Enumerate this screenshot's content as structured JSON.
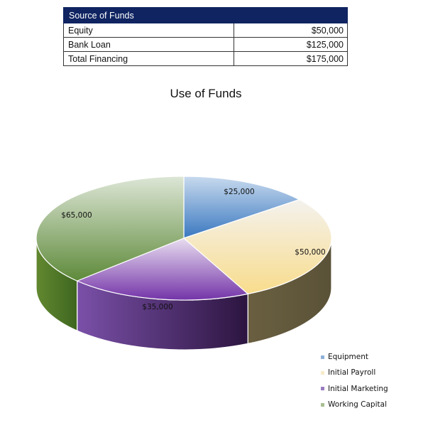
{
  "table": {
    "header": "Source of Funds",
    "rows": [
      {
        "label": "Equity",
        "value": "$50,000"
      },
      {
        "label": "Bank Loan",
        "value": "$125,000"
      },
      {
        "label": "Total Financing",
        "value": "$175,000"
      }
    ]
  },
  "chart_data": {
    "type": "pie",
    "title": "Use of Funds",
    "categories": [
      "Equipment",
      "Initial Payroll",
      "Initial Marketing",
      "Working Capital"
    ],
    "values": [
      25000,
      50000,
      35000,
      65000
    ],
    "labels": [
      "$25,000",
      "$50,000",
      "$35,000",
      "$65,000"
    ],
    "colors": [
      "#4f81bd",
      "#f8e0a0",
      "#7030a0",
      "#77933c"
    ],
    "legend_position": "bottom-right",
    "style": "3d"
  },
  "legend": [
    {
      "label": "Equipment",
      "color": "#8fb0d8"
    },
    {
      "label": "Initial Payroll",
      "color": "#f7ebc8"
    },
    {
      "label": "Initial Marketing",
      "color": "#9a7cc0"
    },
    {
      "label": "Working Capital",
      "color": "#a9bf92"
    }
  ]
}
